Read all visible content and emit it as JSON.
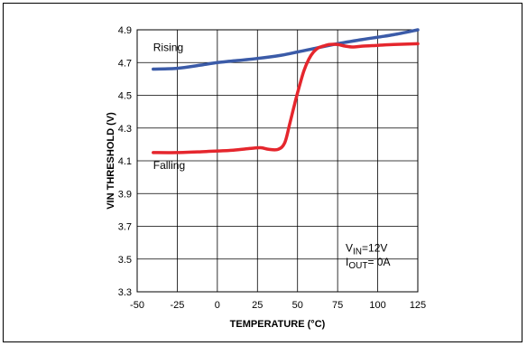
{
  "chart_data": {
    "type": "line",
    "title": "",
    "xlabel": "TEMPERATURE (°C)",
    "ylabel": "VIN THRESHOLD (V)",
    "xlim": [
      -50,
      125
    ],
    "ylim": [
      3.3,
      4.9
    ],
    "grid": true,
    "x_ticks": [
      "-50",
      "-25",
      "0",
      "25",
      "50",
      "75",
      "100",
      "125"
    ],
    "y_ticks": [
      "3.3",
      "3.5",
      "3.7",
      "3.9",
      "4.1",
      "4.3",
      "4.5",
      "4.7",
      "4.9"
    ],
    "series": [
      {
        "name": "Rising",
        "color": "#3b5ba8",
        "x": [
          -40,
          -25,
          -10,
          0,
          10,
          25,
          40,
          50,
          60,
          75,
          90,
          100,
          110,
          125
        ],
        "y": [
          4.66,
          4.665,
          4.685,
          4.7,
          4.71,
          4.725,
          4.745,
          4.765,
          4.785,
          4.815,
          4.84,
          4.855,
          4.87,
          4.9
        ]
      },
      {
        "name": "Falling",
        "color": "#e5262d",
        "x": [
          -40,
          -25,
          -10,
          0,
          10,
          20,
          27,
          32,
          38,
          42,
          45,
          48,
          51,
          54,
          57,
          60,
          63,
          66,
          70,
          75,
          80,
          85,
          90,
          100,
          110,
          125
        ],
        "y": [
          4.15,
          4.15,
          4.155,
          4.16,
          4.165,
          4.175,
          4.18,
          4.17,
          4.17,
          4.21,
          4.32,
          4.44,
          4.55,
          4.65,
          4.72,
          4.765,
          4.79,
          4.8,
          4.81,
          4.81,
          4.8,
          4.795,
          4.8,
          4.805,
          4.81,
          4.815
        ]
      }
    ],
    "annotations": {
      "rising_label": "Rising",
      "falling_label": "Falling",
      "vin_label_main": "V",
      "vin_label_sub": "IN",
      "vin_label_value": "=12V",
      "iout_label_main": "I",
      "iout_label_sub": "OUT",
      "iout_label_value": "= 0A"
    }
  }
}
